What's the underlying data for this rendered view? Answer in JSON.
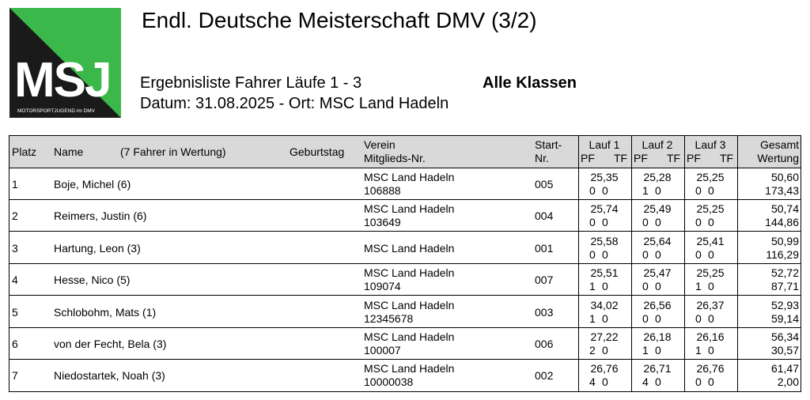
{
  "logo": {
    "letters": "MSJ",
    "tagline": "MOTORSPORTJUGEND im DMV"
  },
  "header": {
    "title": "Endl. Deutsche Meisterschaft DMV (3/2)",
    "subtitle": "Ergebnisliste Fahrer Läufe 1 - 3",
    "classes": "Alle Klassen",
    "date_place": "Datum: 31.08.2025 - Ort: MSC Land Hadeln"
  },
  "table": {
    "headers": {
      "platz": "Platz",
      "name": "Name",
      "count": "(7 Fahrer in Wertung)",
      "geburtstag": "Geburtstag",
      "verein": "Verein",
      "mitglied": "Mitglieds-Nr.",
      "start1": "Start-",
      "start2": "Nr.",
      "lauf1": "Lauf 1",
      "lauf2": "Lauf 2",
      "lauf3": "Lauf 3",
      "pf": "PF",
      "tf": "TF",
      "gesamt": "Gesamt",
      "wertung": "Wertung"
    },
    "rows": [
      {
        "platz": "1",
        "name": "Boje, Michel (6)",
        "verein": "MSC Land Hadeln",
        "nr": "106888",
        "start": "005",
        "l1": "25,35",
        "l1pf": "0",
        "l1tf": "0",
        "l2": "25,28",
        "l2pf": "1",
        "l2tf": "0",
        "l3": "25,25",
        "l3pf": "0",
        "l3tf": "0",
        "gesamt": "50,60",
        "wertung": "173,43"
      },
      {
        "platz": "2",
        "name": "Reimers, Justin (6)",
        "verein": "MSC Land Hadeln",
        "nr": "103649",
        "start": "004",
        "l1": "25,74",
        "l1pf": "0",
        "l1tf": "0",
        "l2": "25,49",
        "l2pf": "0",
        "l2tf": "0",
        "l3": "25,25",
        "l3pf": "0",
        "l3tf": "0",
        "gesamt": "50,74",
        "wertung": "144,86"
      },
      {
        "platz": "3",
        "name": "Hartung, Leon (3)",
        "verein": "MSC Land Hadeln",
        "nr": "",
        "start": "001",
        "l1": "25,58",
        "l1pf": "0",
        "l1tf": "0",
        "l2": "25,64",
        "l2pf": "0",
        "l2tf": "0",
        "l3": "25,41",
        "l3pf": "0",
        "l3tf": "0",
        "gesamt": "50,99",
        "wertung": "116,29"
      },
      {
        "platz": "4",
        "name": "Hesse, Nico (5)",
        "verein": "MSC Land Hadeln",
        "nr": "109074",
        "start": "007",
        "l1": "25,51",
        "l1pf": "1",
        "l1tf": "0",
        "l2": "25,47",
        "l2pf": "0",
        "l2tf": "0",
        "l3": "25,25",
        "l3pf": "1",
        "l3tf": "0",
        "gesamt": "52,72",
        "wertung": "87,71"
      },
      {
        "platz": "5",
        "name": "Schlobohm, Mats (1)",
        "verein": "MSC Land Hadeln",
        "nr": "12345678",
        "start": "003",
        "l1": "34,02",
        "l1pf": "1",
        "l1tf": "0",
        "l2": "26,56",
        "l2pf": "0",
        "l2tf": "0",
        "l3": "26,37",
        "l3pf": "0",
        "l3tf": "0",
        "gesamt": "52,93",
        "wertung": "59,14"
      },
      {
        "platz": "6",
        "name": "von der Fecht, Bela (3)",
        "verein": "MSC Land Hadeln",
        "nr": "100007",
        "start": "006",
        "l1": "27,22",
        "l1pf": "2",
        "l1tf": "0",
        "l2": "26,18",
        "l2pf": "1",
        "l2tf": "0",
        "l3": "26,16",
        "l3pf": "1",
        "l3tf": "0",
        "gesamt": "56,34",
        "wertung": "30,57"
      },
      {
        "platz": "7",
        "name": "Niedostartek, Noah (3)",
        "verein": "MSC Land Hadeln",
        "nr": "10000038",
        "start": "002",
        "l1": "26,76",
        "l1pf": "4",
        "l1tf": "0",
        "l2": "26,71",
        "l2pf": "4",
        "l2tf": "0",
        "l3": "26,76",
        "l3pf": "0",
        "l3tf": "0",
        "gesamt": "61,47",
        "wertung": "2,00"
      }
    ]
  }
}
